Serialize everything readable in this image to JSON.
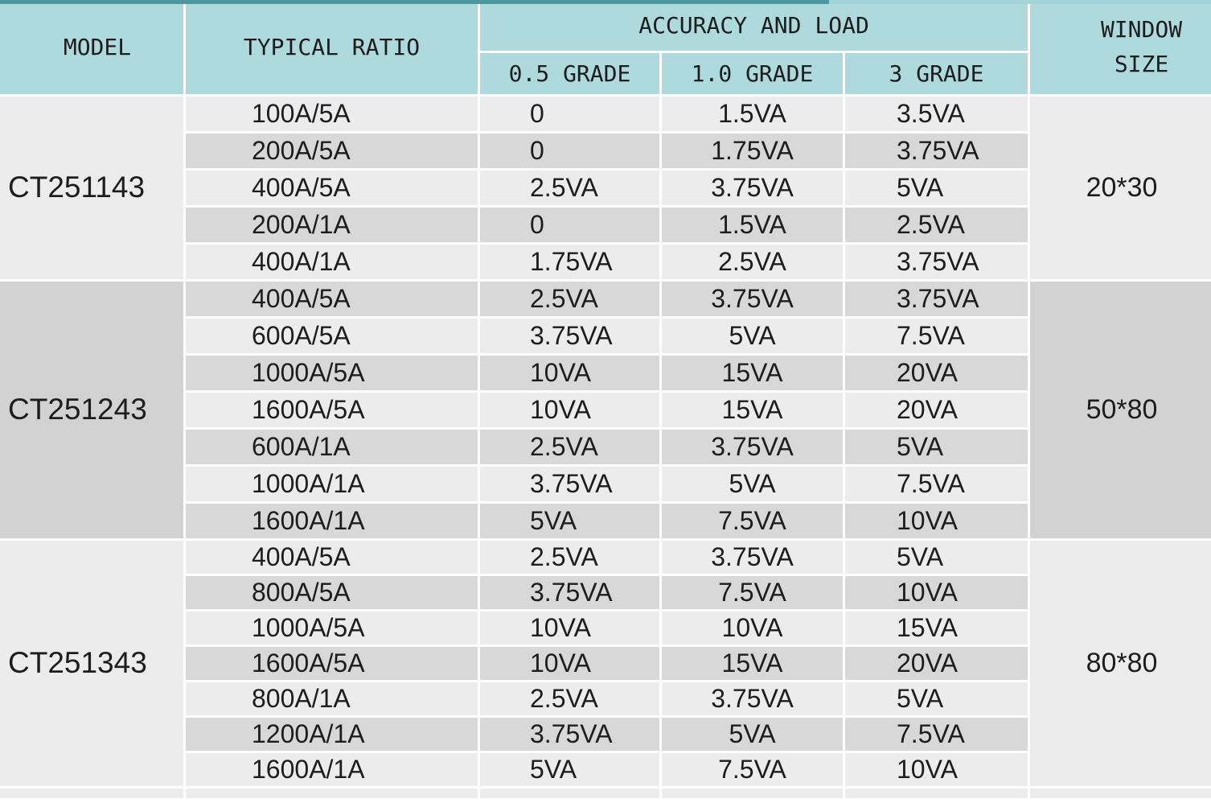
{
  "table": {
    "header": {
      "model": "MODEL",
      "typical_ratio": "TYPICAL RATIO",
      "accuracy_and_load": "ACCURACY AND LOAD",
      "grades": [
        "0.5 GRADE",
        "1.0 GRADE",
        "3 GRADE"
      ],
      "window_size": "WINDOW\nSIZE"
    },
    "groups": [
      {
        "model": "CT251143",
        "window_size": "20*30",
        "rows": [
          {
            "ratio": "100A/5A",
            "g05": "0",
            "g10": "1.5VA",
            "g3": "3.5VA"
          },
          {
            "ratio": "200A/5A",
            "g05": "0",
            "g10": "1.75VA",
            "g3": "3.75VA"
          },
          {
            "ratio": "400A/5A",
            "g05": "2.5VA",
            "g10": "3.75VA",
            "g3": "5VA"
          },
          {
            "ratio": "200A/1A",
            "g05": "0",
            "g10": "1.5VA",
            "g3": "2.5VA"
          },
          {
            "ratio": "400A/1A",
            "g05": "1.75VA",
            "g10": "2.5VA",
            "g3": "3.75VA"
          }
        ]
      },
      {
        "model": "CT251243",
        "window_size": "50*80",
        "rows": [
          {
            "ratio": "400A/5A",
            "g05": "2.5VA",
            "g10": "3.75VA",
            "g3": "3.75VA"
          },
          {
            "ratio": "600A/5A",
            "g05": "3.75VA",
            "g10": "5VA",
            "g3": "7.5VA"
          },
          {
            "ratio": "1000A/5A",
            "g05": "10VA",
            "g10": "15VA",
            "g3": "20VA"
          },
          {
            "ratio": "1600A/5A",
            "g05": "10VA",
            "g10": "15VA",
            "g3": "20VA"
          },
          {
            "ratio": "600A/1A",
            "g05": "2.5VA",
            "g10": "3.75VA",
            "g3": "5VA"
          },
          {
            "ratio": "1000A/1A",
            "g05": "3.75VA",
            "g10": "5VA",
            "g3": "7.5VA"
          },
          {
            "ratio": "1600A/1A",
            "g05": "5VA",
            "g10": "7.5VA",
            "g3": "10VA"
          }
        ]
      },
      {
        "model": "CT251343",
        "window_size": "80*80",
        "rows": [
          {
            "ratio": "400A/5A",
            "g05": "2.5VA",
            "g10": "3.75VA",
            "g3": "5VA"
          },
          {
            "ratio": "800A/5A",
            "g05": "3.75VA",
            "g10": "7.5VA",
            "g3": "10VA"
          },
          {
            "ratio": "1000A/5A",
            "g05": "10VA",
            "g10": "10VA",
            "g3": "15VA"
          },
          {
            "ratio": "1600A/5A",
            "g05": "10VA",
            "g10": "15VA",
            "g3": "20VA"
          },
          {
            "ratio": "800A/1A",
            "g05": "2.5VA",
            "g10": "3.75VA",
            "g3": "5VA"
          },
          {
            "ratio": "1200A/1A",
            "g05": "3.75VA",
            "g10": "5VA",
            "g3": "7.5VA"
          },
          {
            "ratio": "1600A/1A",
            "g05": "5VA",
            "g10": "7.5VA",
            "g3": "10VA"
          }
        ]
      }
    ]
  },
  "colors": {
    "header_bg": "#aedadd",
    "row_light": "#ececec",
    "row_dark": "#d8d8d8",
    "merged_dark": "#d2d2d2",
    "accent_top": "#4c97a0",
    "accent_top_light": "#a4d3d9",
    "cell_border": "#ffffff",
    "text": "#1d1d1d"
  }
}
